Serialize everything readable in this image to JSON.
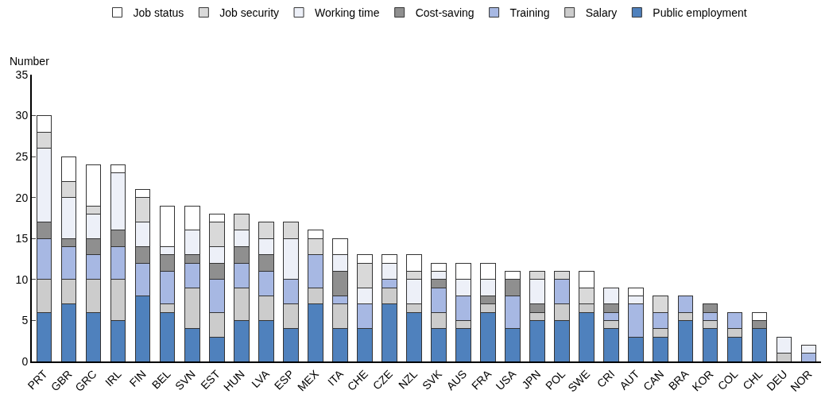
{
  "chart_data": {
    "type": "bar",
    "stacked": true,
    "ylabel": "Number",
    "legend": "top",
    "grid": false,
    "categories": [
      "PRT",
      "GBR",
      "GRC",
      "IRL",
      "FIN",
      "BEL",
      "SVN",
      "EST",
      "HUN",
      "LVA",
      "ESP",
      "MEX",
      "ITA",
      "CHE",
      "CZE",
      "NZL",
      "SVK",
      "AUS",
      "FRA",
      "USA",
      "JPN",
      "POL",
      "SWE",
      "CRI",
      "AUT",
      "CAN",
      "BRA",
      "KOR",
      "COL",
      "CHL",
      "DEU",
      "NOR"
    ],
    "ylim": [
      0,
      35
    ],
    "yticks": [
      0,
      5,
      10,
      15,
      20,
      25,
      30,
      35
    ],
    "series": [
      {
        "name": "Public employment",
        "color": "#4f81bd",
        "values": [
          6,
          7,
          6,
          5,
          8,
          6,
          4,
          3,
          5,
          5,
          4,
          7,
          4,
          4,
          7,
          6,
          4,
          4,
          6,
          4,
          5,
          5,
          6,
          4,
          3,
          3,
          5,
          4,
          3,
          4,
          0,
          0
        ]
      },
      {
        "name": "Salary",
        "color": "#cccccc",
        "values": [
          4,
          3,
          4,
          5,
          0,
          1,
          5,
          3,
          4,
          3,
          3,
          2,
          3,
          0,
          2,
          1,
          2,
          1,
          1,
          0,
          1,
          2,
          1,
          1,
          0,
          1,
          1,
          1,
          1,
          0,
          1,
          0
        ]
      },
      {
        "name": "Training",
        "color": "#a7b8e3",
        "values": [
          5,
          4,
          3,
          4,
          4,
          4,
          3,
          4,
          3,
          3,
          3,
          4,
          1,
          3,
          1,
          0,
          3,
          3,
          0,
          4,
          0,
          3,
          0,
          1,
          4,
          2,
          2,
          1,
          2,
          0,
          0,
          1
        ]
      },
      {
        "name": "Cost-saving",
        "color": "#8f8f8f",
        "values": [
          2,
          1,
          2,
          2,
          2,
          2,
          1,
          2,
          2,
          2,
          0,
          0,
          3,
          0,
          0,
          0,
          1,
          0,
          1,
          2,
          1,
          0,
          0,
          1,
          0,
          0,
          0,
          1,
          0,
          1,
          0,
          0
        ]
      },
      {
        "name": "Working time",
        "color": "#edf0f8",
        "values": [
          9,
          5,
          3,
          7,
          3,
          1,
          3,
          2,
          2,
          2,
          5,
          0,
          2,
          2,
          2,
          3,
          1,
          2,
          2,
          0,
          3,
          0,
          0,
          2,
          1,
          0,
          0,
          0,
          0,
          0,
          2,
          1
        ]
      },
      {
        "name": "Job security",
        "color": "#d9d9d9",
        "values": [
          2,
          2,
          1,
          0,
          3,
          0,
          0,
          3,
          2,
          2,
          2,
          2,
          0,
          3,
          0,
          1,
          0,
          0,
          0,
          0,
          1,
          1,
          2,
          0,
          0,
          2,
          0,
          0,
          0,
          0,
          0,
          0
        ]
      },
      {
        "name": "Job status",
        "color": "#ffffff",
        "values": [
          2,
          3,
          5,
          1,
          1,
          5,
          3,
          1,
          0,
          0,
          0,
          1,
          2,
          1,
          1,
          2,
          1,
          2,
          2,
          1,
          0,
          0,
          2,
          0,
          1,
          0,
          0,
          0,
          0,
          1,
          0,
          0
        ]
      }
    ]
  }
}
